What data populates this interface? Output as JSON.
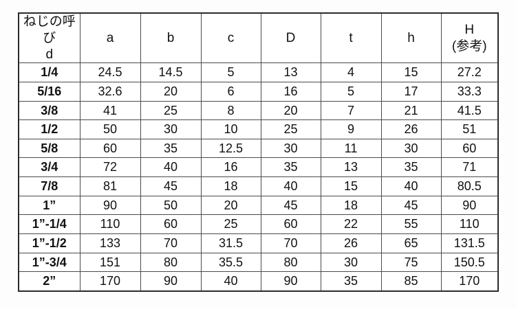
{
  "table": {
    "title_semantic": "thread-dimension-spec-table",
    "header": [
      {
        "line1": "ねじの呼び",
        "line2": "d"
      },
      {
        "line1": "a",
        "line2": ""
      },
      {
        "line1": "b",
        "line2": ""
      },
      {
        "line1": "c",
        "line2": ""
      },
      {
        "line1": "D",
        "line2": ""
      },
      {
        "line1": "t",
        "line2": ""
      },
      {
        "line1": "h",
        "line2": ""
      },
      {
        "line1": "H",
        "line2": "(参考)"
      }
    ],
    "rows": [
      [
        "1/4",
        "24.5",
        "14.5",
        "5",
        "13",
        "4",
        "15",
        "27.2"
      ],
      [
        "5/16",
        "32.6",
        "20",
        "6",
        "16",
        "5",
        "17",
        "33.3"
      ],
      [
        "3/8",
        "41",
        "25",
        "8",
        "20",
        "7",
        "21",
        "41.5"
      ],
      [
        "1/2",
        "50",
        "30",
        "10",
        "25",
        "9",
        "26",
        "51"
      ],
      [
        "5/8",
        "60",
        "35",
        "12.5",
        "30",
        "11",
        "30",
        "60"
      ],
      [
        "3/4",
        "72",
        "40",
        "16",
        "35",
        "13",
        "35",
        "71"
      ],
      [
        "7/8",
        "81",
        "45",
        "18",
        "40",
        "15",
        "40",
        "80.5"
      ],
      [
        "1”",
        "90",
        "50",
        "20",
        "45",
        "18",
        "45",
        "90"
      ],
      [
        "1”-1/4",
        "110",
        "60",
        "25",
        "60",
        "22",
        "55",
        "110"
      ],
      [
        "1”-1/2",
        "133",
        "70",
        "31.5",
        "70",
        "26",
        "65",
        "131.5"
      ],
      [
        "1”-3/4",
        "151",
        "80",
        "35.5",
        "80",
        "30",
        "75",
        "150.5"
      ],
      [
        "2”",
        "170",
        "90",
        "40",
        "90",
        "35",
        "85",
        "170"
      ]
    ],
    "colors": {
      "outer_border": "#2a2a2a",
      "inner_border": "#4a4a4a",
      "text": "#111111",
      "background": "#ffffff"
    }
  }
}
